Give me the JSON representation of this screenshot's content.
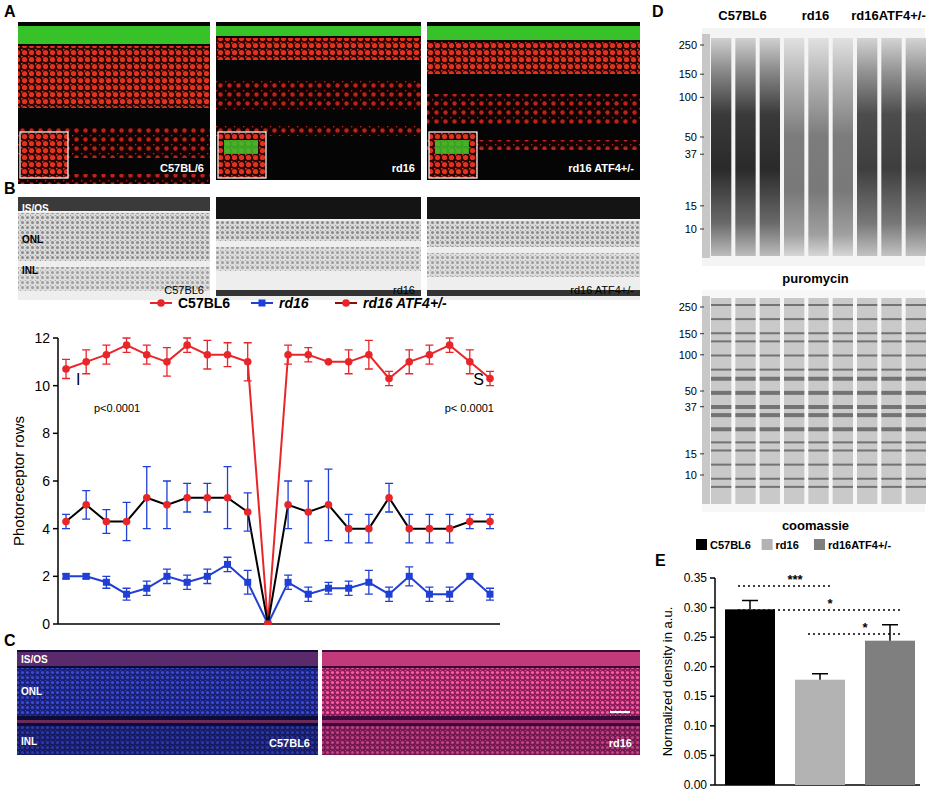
{
  "figure": {
    "panel_labels": [
      "A",
      "B",
      "C",
      "D",
      "E"
    ],
    "panel_a": {
      "images": [
        "C57BL/6",
        "rd16",
        "rd16 ATF4+/-"
      ]
    },
    "panel_b": {
      "images": [
        "C57BL6",
        "rd16",
        "rd16 ATF4+/-"
      ],
      "layers": [
        "IS/OS",
        "ONL",
        "INL"
      ]
    },
    "panel_c": {
      "images": [
        "C57BL6",
        "rd16"
      ],
      "layers": [
        "IS/OS",
        "ONL",
        "INL"
      ]
    },
    "panel_d": {
      "lanes": [
        "C57BL6",
        "rd16",
        "rd16ATF4+/-"
      ],
      "markers": [
        250,
        150,
        100,
        50,
        37,
        15,
        10
      ],
      "blots": [
        "puromycin",
        "coomassie"
      ]
    }
  },
  "chart_data": [
    {
      "type": "line",
      "ylabel": "Photoreceptor rows",
      "categories": [
        null,
        null,
        null,
        null,
        null,
        null,
        null,
        null,
        null,
        null,
        null,
        null,
        null,
        null,
        null,
        null,
        null,
        null,
        null,
        null,
        null,
        null
      ],
      "series": [
        {
          "name": "C57BL6",
          "color": "#e8262a",
          "marker": "circle",
          "values": [
            10.7,
            11.0,
            11.3,
            11.7,
            11.3,
            11.0,
            11.7,
            11.3,
            11.3,
            11.0,
            0,
            11.3,
            11.3,
            11.0,
            11.0,
            11.3,
            10.3,
            11.0,
            11.3,
            11.7,
            11.0,
            10.3
          ],
          "errors": [
            0.4,
            0.5,
            0.4,
            0.3,
            0.4,
            0.6,
            0.3,
            0.6,
            0.5,
            0.8,
            0,
            0.4,
            0.3,
            0,
            0.5,
            0.6,
            0.3,
            0.5,
            0.4,
            0.3,
            0.5,
            0.3
          ]
        },
        {
          "name": "rd16",
          "color": "#1f3fd6",
          "marker": "square",
          "values": [
            2.0,
            2.0,
            1.75,
            1.25,
            1.5,
            2.0,
            1.75,
            2.0,
            2.5,
            1.75,
            0,
            1.75,
            1.25,
            1.5,
            1.5,
            1.75,
            1.25,
            2.0,
            1.25,
            1.25,
            2.0,
            1.25
          ],
          "errors": [
            0.1,
            0.1,
            0.25,
            0.25,
            0.3,
            0.3,
            0.3,
            0.3,
            0.3,
            0.5,
            0,
            0.3,
            0.3,
            0.25,
            0.3,
            0.5,
            0.3,
            0.4,
            0.3,
            0.3,
            0.1,
            0.25
          ]
        },
        {
          "name": "rd16 ATF4+/-",
          "color": "#000000",
          "marker": "circle",
          "values": [
            4.3,
            5.0,
            4.3,
            4.3,
            5.3,
            5.0,
            5.3,
            5.3,
            5.3,
            4.7,
            0,
            5.0,
            4.7,
            5.0,
            4.0,
            4.0,
            5.3,
            4.0,
            4.0,
            4.0,
            4.3,
            4.3
          ],
          "errors": [
            0.3,
            0.6,
            0.5,
            0.8,
            1.3,
            1.0,
            0.6,
            0.6,
            1.3,
            0.8,
            0,
            1.0,
            1.3,
            1.5,
            0.6,
            0.6,
            0.6,
            0.6,
            0.6,
            0.6,
            0.3,
            0.3
          ]
        }
      ],
      "ylim": [
        0,
        12
      ],
      "yticks": [
        0,
        2,
        4,
        6,
        8,
        10,
        12
      ],
      "tick_labels": "y",
      "legend": "top",
      "annotations": [
        "I",
        "p<0.0001",
        "S",
        "p< 0.0001"
      ]
    },
    {
      "type": "bar",
      "ylabel": "Normalized density in a.u.",
      "categories": [
        "C57BL6",
        "rd16",
        "rd16ATF4+/-"
      ],
      "values": [
        0.297,
        0.178,
        0.244
      ],
      "errors": [
        0.015,
        0.01,
        0.027
      ],
      "colors": [
        "#000000",
        "#b3b3b3",
        "#7f7f7f"
      ],
      "ylim": [
        0,
        0.35
      ],
      "yticks": [
        {
          "value": 0,
          "label": "0.00"
        },
        {
          "value": 0.05,
          "label": "0.05"
        },
        {
          "value": 0.1,
          "label": "0.10"
        },
        {
          "value": 0.15,
          "label": "0.15"
        },
        {
          "value": 0.2,
          "label": "0.20"
        },
        {
          "value": 0.25,
          "label": "0.25"
        },
        {
          "value": 0.3,
          "label": "0.30"
        },
        {
          "value": 0.35,
          "label": "0.35"
        }
      ],
      "tick_labels": "y",
      "legend": "top",
      "significance": [
        {
          "between": [
            "C57BL6",
            "rd16"
          ],
          "label": "***"
        },
        {
          "between": [
            "C57BL6",
            "rd16ATF4+/-"
          ],
          "label": "*"
        },
        {
          "between": [
            "rd16",
            "rd16ATF4+/-"
          ],
          "label": "*"
        }
      ]
    }
  ]
}
